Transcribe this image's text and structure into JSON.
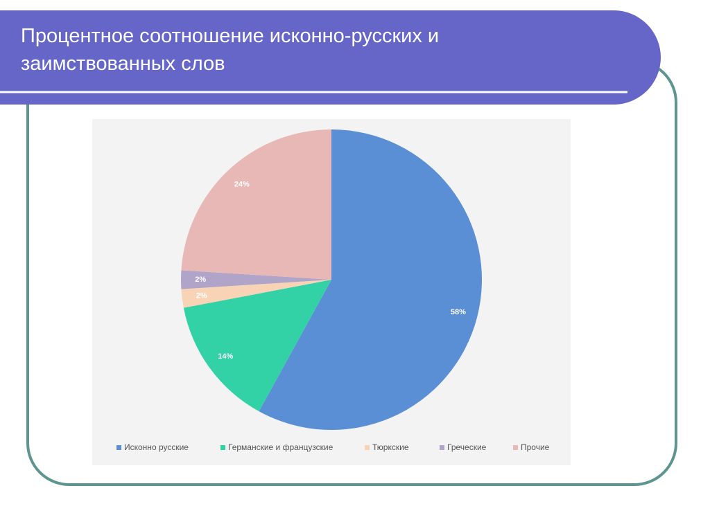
{
  "chart_data": {
    "type": "pie",
    "title": "Процентное соотношение исконно-русских и заимствованных слов",
    "categories": [
      "Исконно русские",
      "Германские и французские",
      "Тюркские",
      "Греческие",
      "Прочие"
    ],
    "values": [
      58,
      14,
      2,
      2,
      24
    ],
    "value_labels": [
      "58%",
      "14%",
      "2%",
      "2%",
      "24%"
    ],
    "colors": [
      "#5a8fd6",
      "#33d1a6",
      "#f8d3b5",
      "#b0a4c8",
      "#e8b8b6"
    ],
    "legend": "bottom"
  }
}
